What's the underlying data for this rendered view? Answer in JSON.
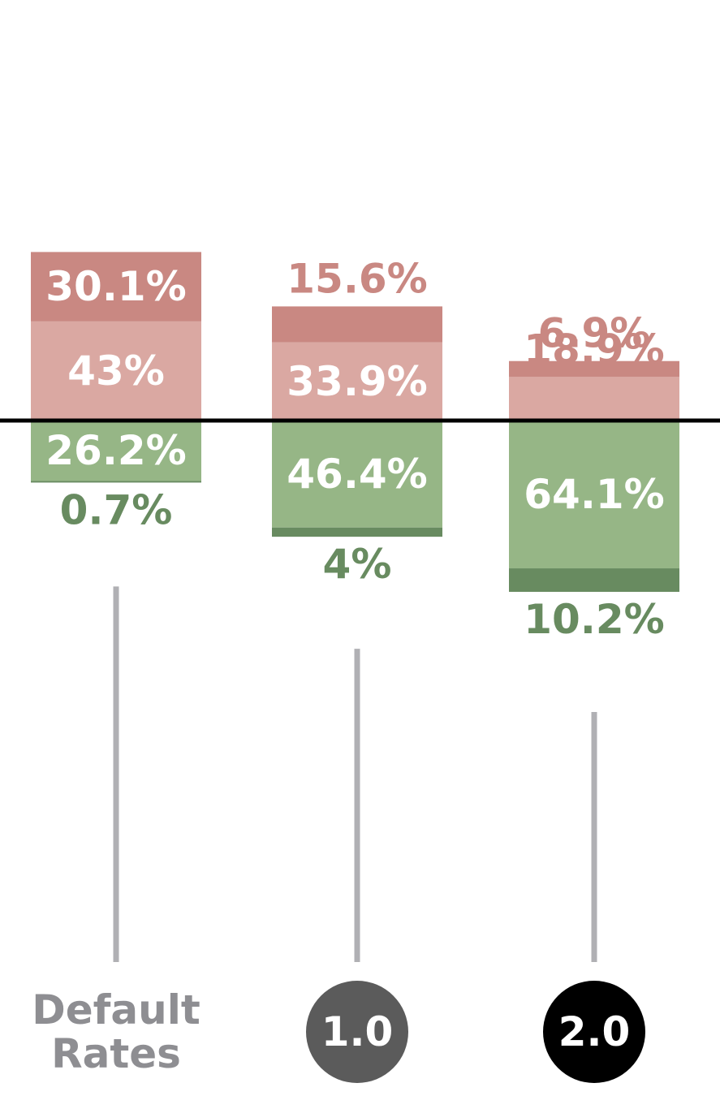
{
  "chart_data": {
    "type": "bar",
    "stacking": "diverging",
    "categories": [
      "Default Rates",
      "1.0",
      "2.0"
    ],
    "category_labels": {
      "default": [
        "Default",
        "Rates"
      ],
      "v1": "1.0",
      "v2": "2.0"
    },
    "series": [
      {
        "direction": "up",
        "values": [
          43,
          33.9,
          18.9
        ],
        "labels": [
          "43%",
          "33.9%",
          "18.9%"
        ]
      },
      {
        "direction": "up",
        "values": [
          30.1,
          15.6,
          6.9
        ],
        "labels": [
          "30.1%",
          "15.6%",
          "6.9%"
        ]
      },
      {
        "direction": "down",
        "values": [
          26.2,
          46.4,
          64.1
        ],
        "labels": [
          "26.2%",
          "46.4%",
          "64.1%"
        ]
      },
      {
        "direction": "down",
        "values": [
          0.7,
          4,
          10.2
        ],
        "labels": [
          "0.7%",
          "4%",
          "10.2%"
        ]
      }
    ],
    "colors": {
      "up_inner": "#daa8a2",
      "up_outer": "#c98882",
      "up_outer_text": "#c98882",
      "down_inner": "#96b686",
      "down_outer": "#688b60",
      "down_outer_text": "#688b60",
      "inside_text": "#ffffff",
      "baseline": "#000000",
      "connector": "#b0b0b4",
      "category_text": "#8e8e92",
      "badge_v1": "#5b5b5b",
      "badge_v2": "#000000"
    }
  }
}
